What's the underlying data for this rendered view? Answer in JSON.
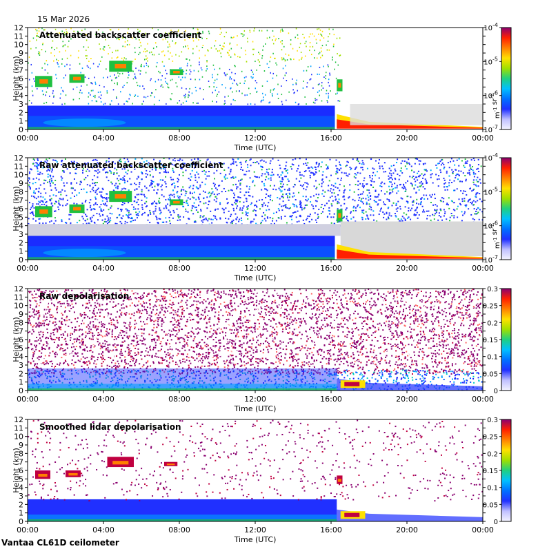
{
  "header": {
    "date": "15 Mar 2026"
  },
  "footer": {
    "site": "Vantaa CL61D ceilometer"
  },
  "chart_data": [
    {
      "type": "heatmap",
      "title": "Attenuated backscatter coefficient",
      "xlabel": "Time (UTC)",
      "ylabel": "Height (km)",
      "x_ticks": [
        "00:00",
        "04:00",
        "08:00",
        "12:00",
        "16:00",
        "20:00",
        "00:00"
      ],
      "y_ticks": [
        "0",
        "1",
        "2",
        "3",
        "4",
        "5",
        "6",
        "7",
        "8",
        "9",
        "10",
        "11",
        "12"
      ],
      "ylim": [
        0,
        12
      ],
      "colorbar": {
        "scale": "log",
        "range": [
          1e-07,
          0.0001
        ],
        "ticks": [
          "10-7",
          "10-6",
          "10-5",
          "10-4"
        ],
        "units": "m-1 sr-1"
      },
      "grid": false
    },
    {
      "type": "heatmap",
      "title": "Raw attenuated backscatter coefficient",
      "xlabel": "Time (UTC)",
      "ylabel": "Height (km)",
      "x_ticks": [
        "00:00",
        "04:00",
        "08:00",
        "12:00",
        "16:00",
        "20:00",
        "00:00"
      ],
      "y_ticks": [
        "0",
        "1",
        "2",
        "3",
        "4",
        "5",
        "6",
        "7",
        "8",
        "9",
        "10",
        "11",
        "12"
      ],
      "ylim": [
        0,
        12
      ],
      "colorbar": {
        "scale": "log",
        "range": [
          1e-07,
          0.0001
        ],
        "ticks": [
          "10-7",
          "10-6",
          "10-5",
          "10-4"
        ],
        "units": "m-1 sr-1"
      },
      "grid": false
    },
    {
      "type": "heatmap",
      "title": "Raw depolarisation",
      "xlabel": "Time (UTC)",
      "ylabel": "Height (km)",
      "x_ticks": [
        "00:00",
        "04:00",
        "08:00",
        "12:00",
        "16:00",
        "20:00",
        "00:00"
      ],
      "y_ticks": [
        "0",
        "1",
        "2",
        "3",
        "4",
        "5",
        "6",
        "7",
        "8",
        "9",
        "10",
        "11",
        "12"
      ],
      "ylim": [
        0,
        12
      ],
      "colorbar": {
        "scale": "linear",
        "range": [
          0,
          0.3
        ],
        "ticks": [
          "0",
          "0.05",
          "0.1",
          "0.15",
          "0.2",
          "0.25",
          "0.3"
        ],
        "units": ""
      },
      "grid": false
    },
    {
      "type": "heatmap",
      "title": "Smoothed lidar depolarisation",
      "xlabel": "Time (UTC)",
      "ylabel": "Height (km)",
      "x_ticks": [
        "00:00",
        "04:00",
        "08:00",
        "12:00",
        "16:00",
        "20:00",
        "00:00"
      ],
      "y_ticks": [
        "0",
        "1",
        "2",
        "3",
        "4",
        "5",
        "6",
        "7",
        "8",
        "9",
        "10",
        "11",
        "12"
      ],
      "ylim": [
        0,
        12
      ],
      "colorbar": {
        "scale": "linear",
        "range": [
          0,
          0.3
        ],
        "ticks": [
          "0",
          "0.05",
          "0.1",
          "0.15",
          "0.2",
          "0.25",
          "0.3"
        ],
        "units": ""
      },
      "grid": false
    }
  ]
}
